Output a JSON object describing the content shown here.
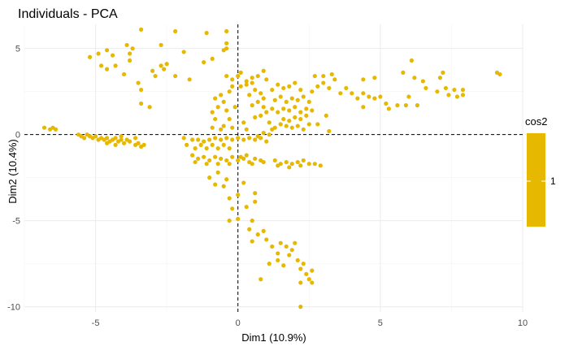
{
  "chart_data": {
    "type": "scatter",
    "title": "Individuals - PCA",
    "xlabel": "Dim1 (10.9%)",
    "ylabel": "Dim2 (10.4%)",
    "xlim": [
      -7.5,
      10.0
    ],
    "ylim": [
      -10.3,
      6.4
    ],
    "x_ticks": [
      -5,
      0,
      5,
      10
    ],
    "y_ticks": [
      5,
      0,
      -5,
      -10
    ],
    "x_tick_labels": [
      "-5",
      "0",
      "5",
      "10"
    ],
    "y_tick_labels": [
      "5",
      "0",
      "-5",
      "-10"
    ],
    "reference_lines": {
      "x": 0,
      "y": 0,
      "style": "dashed"
    },
    "grid": true,
    "point_color": "#E7B800",
    "legend": {
      "title": "cos2",
      "label": "1",
      "position": "right"
    },
    "points": [
      [
        -6.8,
        0.4
      ],
      [
        -6.6,
        0.3
      ],
      [
        -6.5,
        0.4
      ],
      [
        -6.4,
        0.3
      ],
      [
        -5.6,
        0.0
      ],
      [
        -5.5,
        -0.1
      ],
      [
        -5.4,
        -0.2
      ],
      [
        -5.3,
        0.0
      ],
      [
        -5.2,
        -0.1
      ],
      [
        -5.1,
        -0.2
      ],
      [
        -5.0,
        -0.1
      ],
      [
        -4.9,
        -0.3
      ],
      [
        -4.8,
        -0.2
      ],
      [
        -4.7,
        -0.3
      ],
      [
        -4.6,
        -0.2
      ],
      [
        -4.5,
        -0.4
      ],
      [
        -4.4,
        -0.3
      ],
      [
        -4.3,
        -0.2
      ],
      [
        -4.2,
        -0.4
      ],
      [
        -4.1,
        -0.3
      ],
      [
        -4.0,
        -0.5
      ],
      [
        -3.9,
        -0.3
      ],
      [
        -3.8,
        -0.4
      ],
      [
        -4.3,
        -0.6
      ],
      [
        -4.6,
        -0.5
      ],
      [
        -3.6,
        -0.6
      ],
      [
        -3.5,
        -0.5
      ],
      [
        -3.4,
        -0.7
      ],
      [
        -3.3,
        -0.6
      ],
      [
        -3.6,
        -0.2
      ],
      [
        -4.1,
        -0.1
      ],
      [
        -5.2,
        4.5
      ],
      [
        -4.9,
        4.7
      ],
      [
        -4.6,
        4.9
      ],
      [
        -4.4,
        4.6
      ],
      [
        -3.9,
        5.2
      ],
      [
        -3.8,
        4.7
      ],
      [
        -4.3,
        4.0
      ],
      [
        -4.6,
        3.8
      ],
      [
        -4.8,
        4.0
      ],
      [
        -3.8,
        4.3
      ],
      [
        -3.7,
        5.0
      ],
      [
        -4.0,
        3.5
      ],
      [
        -3.4,
        6.1
      ],
      [
        -3.0,
        3.7
      ],
      [
        -2.7,
        4.0
      ],
      [
        -2.6,
        3.8
      ],
      [
        -2.5,
        4.1
      ],
      [
        -2.7,
        5.2
      ],
      [
        -2.2,
        6.0
      ],
      [
        -1.9,
        4.8
      ],
      [
        -1.1,
        5.9
      ],
      [
        -0.9,
        4.4
      ],
      [
        -1.2,
        4.2
      ],
      [
        -0.5,
        4.9
      ],
      [
        -0.4,
        5.0
      ],
      [
        -0.4,
        5.3
      ],
      [
        -0.4,
        6.0
      ],
      [
        -3.5,
        3.0
      ],
      [
        -3.4,
        2.6
      ],
      [
        -2.9,
        3.4
      ],
      [
        -2.2,
        3.4
      ],
      [
        -1.7,
        3.2
      ],
      [
        -3.4,
        1.8
      ],
      [
        -3.1,
        1.6
      ],
      [
        -0.8,
        2.1
      ],
      [
        -0.6,
        2.3
      ],
      [
        -0.3,
        2.5
      ],
      [
        -0.2,
        2.8
      ],
      [
        -0.5,
        1.9
      ],
      [
        -0.7,
        1.6
      ],
      [
        -0.9,
        1.3
      ],
      [
        -0.4,
        1.4
      ],
      [
        -0.1,
        1.6
      ],
      [
        -0.8,
        0.9
      ],
      [
        -0.5,
        0.5
      ],
      [
        -0.3,
        0.9
      ],
      [
        -0.6,
        0.3
      ],
      [
        -0.2,
        0.4
      ],
      [
        -0.9,
        0.4
      ],
      [
        0.2,
        0.7
      ],
      [
        0.3,
        0.3
      ],
      [
        0.1,
        2.8
      ],
      [
        0.3,
        2.9
      ],
      [
        0.5,
        3.0
      ],
      [
        0.6,
        2.6
      ],
      [
        0.8,
        2.4
      ],
      [
        0.9,
        2.1
      ],
      [
        0.7,
        1.9
      ],
      [
        0.5,
        1.7
      ],
      [
        0.4,
        2.3
      ],
      [
        0.9,
        1.6
      ],
      [
        1.0,
        1.3
      ],
      [
        0.8,
        1.1
      ],
      [
        0.6,
        1.0
      ],
      [
        0.0,
        3.4
      ],
      [
        0.1,
        3.6
      ],
      [
        0.3,
        3.1
      ],
      [
        -0.2,
        3.2
      ],
      [
        -0.4,
        3.4
      ],
      [
        0.5,
        3.3
      ],
      [
        1.1,
        0.7
      ],
      [
        1.2,
        0.3
      ],
      [
        0.9,
        0.1
      ],
      [
        1.1,
        0.0
      ],
      [
        0.7,
        -0.1
      ],
      [
        -1.9,
        -0.2
      ],
      [
        -1.6,
        -0.3
      ],
      [
        -1.4,
        -0.3
      ],
      [
        -1.2,
        -0.4
      ],
      [
        -1.0,
        -0.3
      ],
      [
        -0.8,
        -0.2
      ],
      [
        -0.6,
        -0.3
      ],
      [
        -0.4,
        -0.2
      ],
      [
        -0.2,
        -0.3
      ],
      [
        0.0,
        -0.2
      ],
      [
        0.2,
        -0.3
      ],
      [
        0.4,
        -0.2
      ],
      [
        0.6,
        -0.3
      ],
      [
        0.8,
        -0.2
      ],
      [
        1.0,
        -0.4
      ],
      [
        -1.8,
        -0.6
      ],
      [
        -1.5,
        -0.8
      ],
      [
        -1.3,
        -0.6
      ],
      [
        -1.1,
        -0.8
      ],
      [
        -0.9,
        -0.6
      ],
      [
        -0.7,
        -0.8
      ],
      [
        -0.5,
        -0.6
      ],
      [
        -0.3,
        -0.8
      ],
      [
        -1.6,
        -1.2
      ],
      [
        -1.4,
        -1.4
      ],
      [
        -1.2,
        -1.3
      ],
      [
        -1.0,
        -1.5
      ],
      [
        -0.8,
        -1.3
      ],
      [
        -0.6,
        -1.4
      ],
      [
        -0.4,
        -1.5
      ],
      [
        -0.2,
        -1.3
      ],
      [
        0.0,
        -1.5
      ],
      [
        0.2,
        -1.4
      ],
      [
        0.4,
        -1.6
      ],
      [
        0.6,
        -1.4
      ],
      [
        0.8,
        -1.5
      ],
      [
        0.1,
        -1.3
      ],
      [
        0.3,
        -1.2
      ],
      [
        -1.5,
        -1.6
      ],
      [
        -1.1,
        -1.7
      ],
      [
        -0.7,
        -1.7
      ],
      [
        -0.3,
        -1.7
      ],
      [
        0.5,
        -1.7
      ],
      [
        0.9,
        -1.6
      ],
      [
        1.3,
        -1.5
      ],
      [
        1.5,
        -1.7
      ],
      [
        1.7,
        -1.6
      ],
      [
        1.9,
        -1.7
      ],
      [
        2.1,
        -1.6
      ],
      [
        2.3,
        -1.5
      ],
      [
        2.5,
        -1.7
      ],
      [
        2.7,
        -1.7
      ],
      [
        2.9,
        -1.8
      ],
      [
        1.4,
        -1.8
      ],
      [
        1.8,
        -1.9
      ],
      [
        2.2,
        -1.8
      ],
      [
        1.3,
        0.4
      ],
      [
        1.5,
        0.6
      ],
      [
        1.7,
        0.5
      ],
      [
        1.9,
        0.4
      ],
      [
        2.1,
        0.5
      ],
      [
        2.3,
        0.3
      ],
      [
        1.6,
        0.9
      ],
      [
        1.8,
        0.8
      ],
      [
        2.0,
        1.0
      ],
      [
        2.2,
        0.9
      ],
      [
        2.4,
        1.1
      ],
      [
        1.2,
        1.5
      ],
      [
        1.4,
        1.3
      ],
      [
        1.6,
        1.5
      ],
      [
        1.8,
        1.4
      ],
      [
        2.0,
        1.6
      ],
      [
        2.2,
        1.3
      ],
      [
        2.4,
        1.5
      ],
      [
        2.6,
        1.4
      ],
      [
        1.3,
        2.0
      ],
      [
        1.5,
        2.2
      ],
      [
        1.7,
        1.9
      ],
      [
        1.9,
        2.1
      ],
      [
        2.1,
        2.0
      ],
      [
        2.3,
        2.2
      ],
      [
        2.5,
        1.9
      ],
      [
        1.2,
        2.6
      ],
      [
        1.4,
        2.9
      ],
      [
        1.6,
        2.7
      ],
      [
        1.8,
        2.8
      ],
      [
        2.0,
        3.0
      ],
      [
        2.2,
        2.6
      ],
      [
        1.0,
        3.2
      ],
      [
        0.7,
        3.4
      ],
      [
        0.9,
        3.7
      ],
      [
        2.6,
        2.5
      ],
      [
        2.8,
        2.8
      ],
      [
        3.0,
        3.0
      ],
      [
        3.2,
        2.7
      ],
      [
        3.4,
        3.2
      ],
      [
        3.6,
        2.4
      ],
      [
        3.8,
        2.7
      ],
      [
        4.0,
        2.4
      ],
      [
        4.2,
        2.1
      ],
      [
        2.7,
        3.4
      ],
      [
        3.0,
        3.4
      ],
      [
        3.3,
        3.5
      ],
      [
        2.8,
        0.6
      ],
      [
        3.2,
        0.2
      ],
      [
        3.1,
        1.1
      ],
      [
        2.5,
        0.6
      ],
      [
        4.4,
        2.4
      ],
      [
        4.6,
        2.2
      ],
      [
        4.4,
        1.6
      ],
      [
        4.8,
        2.1
      ],
      [
        5.0,
        2.2
      ],
      [
        5.2,
        1.8
      ],
      [
        5.3,
        1.5
      ],
      [
        5.6,
        1.7
      ],
      [
        5.9,
        1.7
      ],
      [
        6.0,
        2.2
      ],
      [
        6.3,
        1.7
      ],
      [
        4.4,
        3.2
      ],
      [
        4.8,
        3.3
      ],
      [
        6.2,
        3.3
      ],
      [
        6.1,
        4.3
      ],
      [
        5.8,
        3.6
      ],
      [
        6.5,
        3.1
      ],
      [
        6.6,
        2.7
      ],
      [
        7.0,
        2.5
      ],
      [
        7.1,
        3.3
      ],
      [
        7.2,
        3.6
      ],
      [
        7.3,
        2.7
      ],
      [
        7.7,
        2.2
      ],
      [
        7.6,
        2.6
      ],
      [
        7.9,
        2.6
      ],
      [
        7.9,
        2.3
      ],
      [
        7.4,
        2.3
      ],
      [
        9.1,
        3.6
      ],
      [
        9.2,
        3.5
      ],
      [
        -1.0,
        -2.5
      ],
      [
        -0.8,
        -2.9
      ],
      [
        -0.7,
        -2.2
      ],
      [
        -0.5,
        -3.0
      ],
      [
        -0.4,
        -2.6
      ],
      [
        -0.3,
        -3.7
      ],
      [
        0.0,
        -3.5
      ],
      [
        0.2,
        -2.8
      ],
      [
        0.3,
        -4.2
      ],
      [
        0.6,
        -3.4
      ],
      [
        0.6,
        -3.9
      ],
      [
        -0.2,
        -4.3
      ],
      [
        0.0,
        -4.9
      ],
      [
        -0.3,
        -5.0
      ],
      [
        0.5,
        -5.0
      ],
      [
        0.4,
        -5.5
      ],
      [
        0.7,
        -5.8
      ],
      [
        0.9,
        -5.6
      ],
      [
        1.0,
        -6.1
      ],
      [
        0.5,
        -6.2
      ],
      [
        1.2,
        -6.5
      ],
      [
        1.4,
        -6.9
      ],
      [
        1.5,
        -6.3
      ],
      [
        1.7,
        -6.5
      ],
      [
        1.9,
        -6.7
      ],
      [
        2.0,
        -6.3
      ],
      [
        1.8,
        -7.0
      ],
      [
        1.4,
        -7.3
      ],
      [
        1.6,
        -7.6
      ],
      [
        1.1,
        -7.5
      ],
      [
        2.1,
        -7.3
      ],
      [
        2.2,
        -7.8
      ],
      [
        2.3,
        -7.5
      ],
      [
        2.4,
        -8.1
      ],
      [
        2.6,
        -7.9
      ],
      [
        2.5,
        -8.4
      ],
      [
        2.2,
        -8.6
      ],
      [
        0.8,
        -8.4
      ],
      [
        2.6,
        -8.6
      ],
      [
        2.2,
        -10.0
      ]
    ]
  }
}
